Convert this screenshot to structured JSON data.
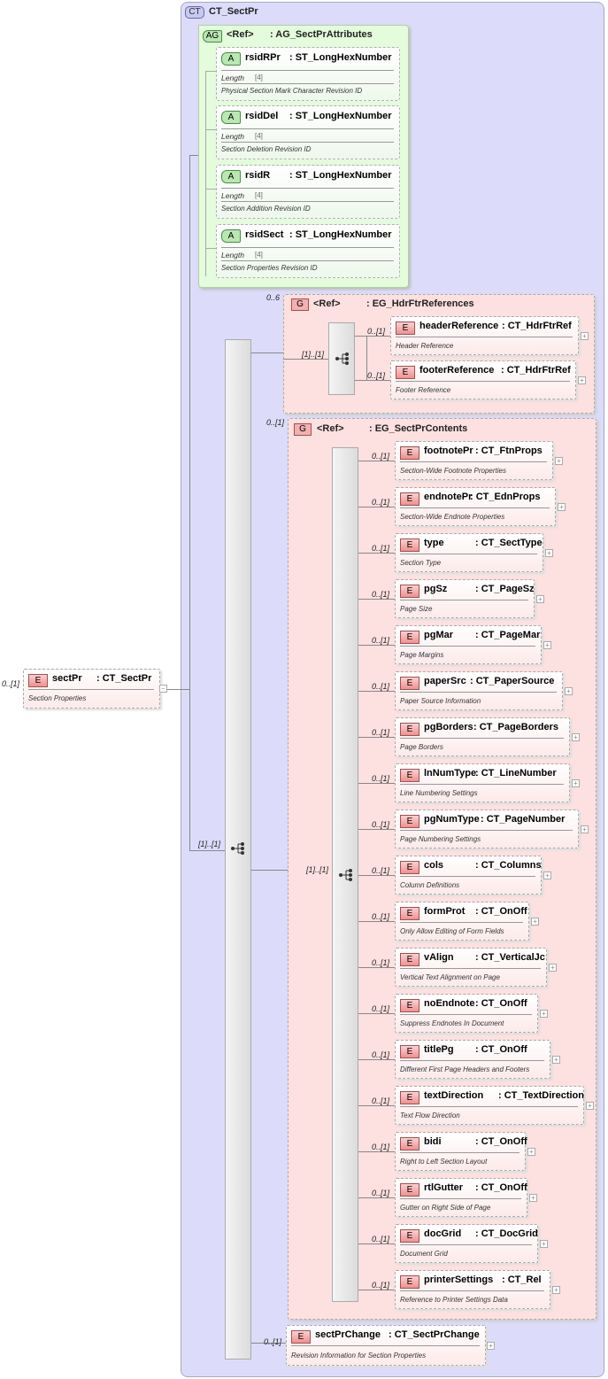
{
  "complex_type": {
    "badge": "CT",
    "name": "CT_SectPr"
  },
  "root": {
    "badge": "E",
    "occurs": "0..[1]",
    "name": "sectPr",
    "type": ": CT_SectPr",
    "desc": "Section Properties",
    "toggle": "−"
  },
  "attribute_group": {
    "badge": "AG",
    "ref": "<Ref>",
    "name": ": AG_SectPrAttributes",
    "attributes": [
      {
        "badge": "A",
        "name": "rsidRPr",
        "type": ": ST_LongHexNumber",
        "facet": "Length",
        "facet_value": "[4]",
        "desc": "Physical Section Mark Character Revision ID"
      },
      {
        "badge": "A",
        "name": "rsidDel",
        "type": ": ST_LongHexNumber",
        "facet": "Length",
        "facet_value": "[4]",
        "desc": "Section Deletion Revision ID"
      },
      {
        "badge": "A",
        "name": "rsidR",
        "type": ": ST_LongHexNumber",
        "facet": "Length",
        "facet_value": "[4]",
        "desc": "Section Addition Revision ID"
      },
      {
        "badge": "A",
        "name": "rsidSect",
        "type": ": ST_LongHexNumber",
        "facet": "Length",
        "facet_value": "[4]",
        "desc": "Section Properties Revision ID"
      }
    ]
  },
  "main_sequence": {
    "occurs": "[1]..[1]"
  },
  "hdrftr_group": {
    "badge": "G",
    "occurs": "0..6",
    "ref": "<Ref>",
    "name": ": EG_HdrFtrReferences",
    "seq_occurs": "[1]..[1]",
    "elements": [
      {
        "occurs": "0..[1]",
        "name": "headerReference",
        "type": ": CT_HdrFtrRef",
        "desc": "Header Reference"
      },
      {
        "occurs": "0..[1]",
        "name": "footerReference",
        "type": ": CT_HdrFtrRef",
        "desc": "Footer Reference"
      }
    ]
  },
  "contents_group": {
    "badge": "G",
    "occurs": "0..[1]",
    "ref": "<Ref>",
    "name": ": EG_SectPrContents",
    "seq_occurs": "[1]..[1]",
    "elements": [
      {
        "occurs": "0..[1]",
        "name": "footnotePr",
        "type": ": CT_FtnProps",
        "desc": "Section-Wide Footnote Properties"
      },
      {
        "occurs": "0..[1]",
        "name": "endnotePr",
        "type": ": CT_EdnProps",
        "desc": "Section-Wide Endnote Properties"
      },
      {
        "occurs": "0..[1]",
        "name": "type",
        "type": ": CT_SectType",
        "desc": "Section Type"
      },
      {
        "occurs": "0..[1]",
        "name": "pgSz",
        "type": ": CT_PageSz",
        "desc": "Page Size"
      },
      {
        "occurs": "0..[1]",
        "name": "pgMar",
        "type": ": CT_PageMar",
        "desc": "Page Margins"
      },
      {
        "occurs": "0..[1]",
        "name": "paperSrc",
        "type": ": CT_PaperSource",
        "desc": "Paper Source Information"
      },
      {
        "occurs": "0..[1]",
        "name": "pgBorders",
        "type": ": CT_PageBorders",
        "desc": "Page Borders"
      },
      {
        "occurs": "0..[1]",
        "name": "lnNumType",
        "type": ": CT_LineNumber",
        "desc": "Line Numbering Settings"
      },
      {
        "occurs": "0..[1]",
        "name": "pgNumType",
        "type": ": CT_PageNumber",
        "desc": "Page Numbering Settings"
      },
      {
        "occurs": "0..[1]",
        "name": "cols",
        "type": ": CT_Columns",
        "desc": "Column Definitions"
      },
      {
        "occurs": "0..[1]",
        "name": "formProt",
        "type": ": CT_OnOff",
        "desc": "Only Allow Editing of Form Fields"
      },
      {
        "occurs": "0..[1]",
        "name": "vAlign",
        "type": ": CT_VerticalJc",
        "desc": "Vertical Text Alignment on Page"
      },
      {
        "occurs": "0..[1]",
        "name": "noEndnote",
        "type": ": CT_OnOff",
        "desc": "Suppress Endnotes In Document"
      },
      {
        "occurs": "0..[1]",
        "name": "titlePg",
        "type": ": CT_OnOff",
        "desc": "Different First Page Headers and Footers"
      },
      {
        "occurs": "0..[1]",
        "name": "textDirection",
        "type": ": CT_TextDirection",
        "desc": "Text Flow Direction"
      },
      {
        "occurs": "0..[1]",
        "name": "bidi",
        "type": ": CT_OnOff",
        "desc": "Right to Left Section Layout"
      },
      {
        "occurs": "0..[1]",
        "name": "rtlGutter",
        "type": ": CT_OnOff",
        "desc": "Gutter on Right Side of Page"
      },
      {
        "occurs": "0..[1]",
        "name": "docGrid",
        "type": ": CT_DocGrid",
        "desc": "Document Grid"
      },
      {
        "occurs": "0..[1]",
        "name": "printerSettings",
        "type": ": CT_Rel",
        "desc": "Reference to Printer Settings Data"
      }
    ]
  },
  "revision_element": {
    "occurs": "0..[1]",
    "name": "sectPrChange",
    "type": ": CT_SectPrChange",
    "desc": "Revision Information for Section Properties"
  }
}
